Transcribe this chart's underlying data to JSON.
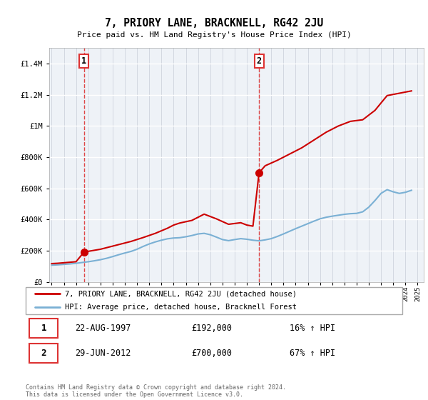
{
  "title": "7, PRIORY LANE, BRACKNELL, RG42 2JU",
  "subtitle": "Price paid vs. HM Land Registry's House Price Index (HPI)",
  "legend_line1": "7, PRIORY LANE, BRACKNELL, RG42 2JU (detached house)",
  "legend_line2": "HPI: Average price, detached house, Bracknell Forest",
  "transaction1_date": "22-AUG-1997",
  "transaction1_price": 192000,
  "transaction1_pct": "16%",
  "transaction2_date": "29-JUN-2012",
  "transaction2_price": 700000,
  "transaction2_pct": "67%",
  "footer": "Contains HM Land Registry data © Crown copyright and database right 2024.\nThis data is licensed under the Open Government Licence v3.0.",
  "property_color": "#cc0000",
  "hpi_color": "#7ab0d4",
  "vline_color": "#dd3333",
  "plot_bg_color": "#eef2f7",
  "ylim": [
    0,
    1500000
  ],
  "xlim_start": 1994.8,
  "xlim_end": 2025.5,
  "hpi_x": [
    1995.0,
    1995.5,
    1996.0,
    1996.5,
    1997.0,
    1997.5,
    1998.0,
    1998.5,
    1999.0,
    1999.5,
    2000.0,
    2000.5,
    2001.0,
    2001.5,
    2002.0,
    2002.5,
    2003.0,
    2003.5,
    2004.0,
    2004.5,
    2005.0,
    2005.5,
    2006.0,
    2006.5,
    2007.0,
    2007.5,
    2008.0,
    2008.5,
    2009.0,
    2009.5,
    2010.0,
    2010.5,
    2011.0,
    2011.5,
    2012.0,
    2012.5,
    2013.0,
    2013.5,
    2014.0,
    2014.5,
    2015.0,
    2015.5,
    2016.0,
    2016.5,
    2017.0,
    2017.5,
    2018.0,
    2018.5,
    2019.0,
    2019.5,
    2020.0,
    2020.5,
    2021.0,
    2021.5,
    2022.0,
    2022.5,
    2023.0,
    2023.5,
    2024.0,
    2024.5
  ],
  "hpi_y": [
    108000,
    110000,
    113000,
    116000,
    120000,
    125000,
    130000,
    136000,
    143000,
    152000,
    163000,
    175000,
    186000,
    196000,
    210000,
    228000,
    244000,
    257000,
    268000,
    277000,
    282000,
    284000,
    290000,
    298000,
    308000,
    312000,
    303000,
    288000,
    272000,
    265000,
    272000,
    278000,
    274000,
    268000,
    264000,
    270000,
    278000,
    292000,
    308000,
    325000,
    342000,
    358000,
    374000,
    390000,
    405000,
    415000,
    422000,
    428000,
    434000,
    438000,
    440000,
    450000,
    480000,
    522000,
    568000,
    592000,
    578000,
    568000,
    575000,
    588000
  ],
  "prop_x": [
    1995.0,
    1995.5,
    1997.0,
    1997.65,
    1999.0,
    2000.5,
    2001.5,
    2002.5,
    2003.5,
    2004.5,
    2005.0,
    2005.5,
    2006.5,
    2007.0,
    2007.5,
    2008.5,
    2009.5,
    2010.0,
    2010.5,
    2011.0,
    2011.5,
    2012.0,
    2012.5,
    2013.5,
    2014.5,
    2015.5,
    2016.5,
    2017.5,
    2018.5,
    2019.5,
    2020.5,
    2021.5,
    2022.5,
    2023.5,
    2024.5
  ],
  "prop_y": [
    118000,
    120000,
    130000,
    192000,
    210000,
    240000,
    260000,
    285000,
    312000,
    345000,
    365000,
    378000,
    395000,
    415000,
    435000,
    405000,
    370000,
    375000,
    380000,
    365000,
    358000,
    700000,
    745000,
    780000,
    820000,
    860000,
    910000,
    960000,
    1000000,
    1030000,
    1040000,
    1100000,
    1195000,
    1210000,
    1225000
  ],
  "transaction1_x": 1997.64,
  "transaction2_x": 2012.0,
  "xtick_years": [
    1995,
    1996,
    1997,
    1998,
    1999,
    2000,
    2001,
    2002,
    2003,
    2004,
    2005,
    2006,
    2007,
    2008,
    2009,
    2010,
    2011,
    2012,
    2013,
    2014,
    2015,
    2016,
    2017,
    2018,
    2019,
    2020,
    2021,
    2022,
    2023,
    2024,
    2025
  ],
  "yticks": [
    0,
    200000,
    400000,
    600000,
    800000,
    1000000,
    1200000,
    1400000
  ]
}
